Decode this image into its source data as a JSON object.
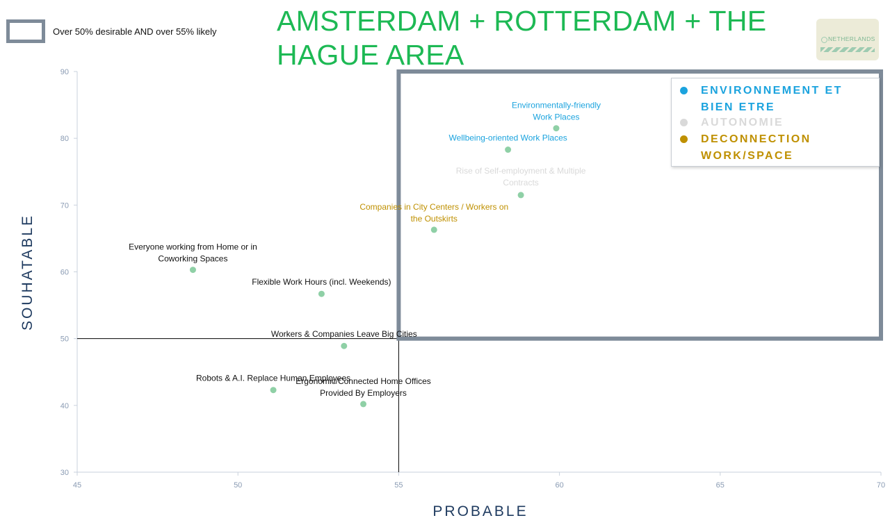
{
  "title": "AMSTERDAM + ROTTERDAM + THE HAGUE AREA",
  "region_legend": {
    "label": "Over 50% desirable AND over 55% likely"
  },
  "badge": {
    "text": "NETHERLANDS"
  },
  "categories": [
    {
      "name": "ENVIRONNEMENT ET BIEN ETRE",
      "color": "#1ba3de"
    },
    {
      "name": "AUTONOMIE",
      "color": "#d9d9d9"
    },
    {
      "name": "DECONNECTION WORK/SPACE",
      "color": "#bf9000"
    }
  ],
  "chart_data": {
    "type": "scatter",
    "xlabel": "PROBABLE",
    "ylabel": "SOUHATABLE",
    "xlim": [
      45,
      70
    ],
    "ylim": [
      30,
      90
    ],
    "xticks": [
      45,
      50,
      55,
      60,
      65,
      70
    ],
    "yticks": [
      30,
      40,
      50,
      60,
      70,
      80,
      90
    ],
    "threshold_x": 55,
    "threshold_y": 50,
    "highlight_region": {
      "x": [
        55,
        70
      ],
      "y": [
        50,
        90
      ]
    },
    "point_color": "#8fd0a6",
    "points": [
      {
        "label": "Environmentally-friendly Work Places",
        "x": 59.9,
        "y": 81.5,
        "label_color": "#1ba3de"
      },
      {
        "label": "Wellbeing-oriented Work Places",
        "x": 58.4,
        "y": 78.3,
        "label_color": "#1ba3de"
      },
      {
        "label": "Rise of Self-employment & Multiple Contracts",
        "x": 58.8,
        "y": 71.5,
        "label_color": "#d9d9d9"
      },
      {
        "label": "Companies in City Centers / Workers on the Outskirts",
        "x": 56.1,
        "y": 66.3,
        "label_color": "#bf9000"
      },
      {
        "label": "Everyone working from Home or in Coworking Spaces",
        "x": 48.6,
        "y": 60.3,
        "label_color": "#111111"
      },
      {
        "label": "Flexible Work Hours (incl. Weekends)",
        "x": 52.6,
        "y": 56.7,
        "label_color": "#111111"
      },
      {
        "label": "Workers & Companies Leave Big Cities",
        "x": 53.3,
        "y": 48.9,
        "label_color": "#111111"
      },
      {
        "label": "Robots & A.I. Replace Human Employees",
        "x": 51.1,
        "y": 42.3,
        "label_color": "#111111"
      },
      {
        "label": "Ergonomic/Connected Home Offices Provided By Employers",
        "x": 53.9,
        "y": 40.2,
        "label_color": "#111111"
      }
    ]
  }
}
